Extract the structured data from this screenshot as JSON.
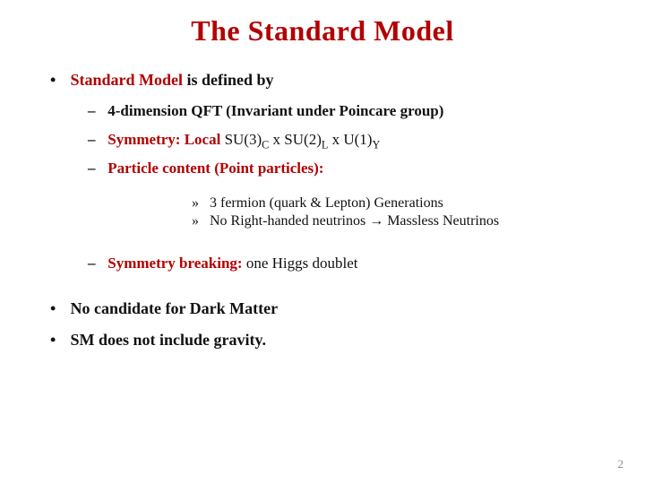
{
  "colors": {
    "accent_red": "#b30000",
    "text": "#111111",
    "background": "#ffffff",
    "pagenum": "#888888"
  },
  "title": "The Standard Model",
  "b1": {
    "bullet": "•",
    "defined_lead": "Standard Model  ",
    "defined_rest": "is defined by",
    "no_dm": "No candidate for Dark Matter",
    "no_gravity": "SM does not include gravity."
  },
  "b2": {
    "dash": "–",
    "qft": "4-dimension QFT (Invariant under Poincare group)",
    "sym_lead": "Symmetry: Local ",
    "sym_s1a": "SU(3)",
    "sym_s1b": "C",
    "sym_x1": " x ",
    "sym_s2a": "SU(2)",
    "sym_s2b": "L",
    "sym_x2": " x ",
    "sym_s3a": "U(1)",
    "sym_s3b": "Y",
    "content": "Particle content (Point particles):",
    "break_lead": "Symmetry breaking: ",
    "break_rest": " one Higgs doublet"
  },
  "b3": {
    "raquo": "»",
    "gen": "3 fermion (quark & Lepton) Generations",
    "rh": "No Right-handed neutrinos → Massless Neutrinos"
  },
  "page_number": "2"
}
